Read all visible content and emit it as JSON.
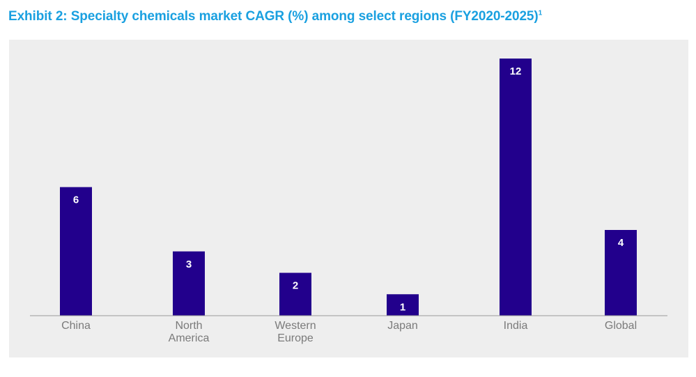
{
  "header": {
    "title": "Exhibit 2: Specialty chemicals market CAGR (%) among select regions (FY2020-2025)",
    "title_footnote": "1"
  },
  "colors": {
    "title": "#1aa0e0",
    "bar": "#22008c",
    "panel_background": "#eeeeee",
    "axis": "#9a9a9a",
    "category_text": "#7a7a7a",
    "bar_label_text": "#ffffff"
  },
  "chart_data": {
    "type": "bar",
    "categories": [
      [
        "China"
      ],
      [
        "North",
        "America"
      ],
      [
        "Western",
        "Europe"
      ],
      [
        "Japan"
      ],
      [
        "India"
      ],
      [
        "Global"
      ]
    ],
    "values": [
      6,
      3,
      2,
      1,
      12,
      4
    ],
    "data_labels": [
      "6",
      "3",
      "2",
      "1",
      "12",
      "4"
    ],
    "ylim": [
      0,
      12
    ],
    "grid": false,
    "legend": "none"
  }
}
